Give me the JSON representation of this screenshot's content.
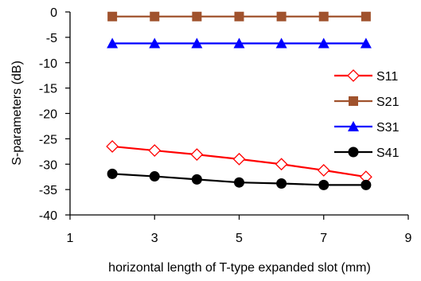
{
  "chart_data": {
    "type": "line",
    "title": "",
    "xlabel": "horizontal length of T-type expanded slot (mm)",
    "ylabel": "S-parameters (dB)",
    "xlim": [
      1,
      9
    ],
    "ylim": [
      -40,
      0
    ],
    "x_ticks": [
      "1",
      "3",
      "5",
      "7",
      "9"
    ],
    "y_ticks": [
      "0",
      "-5",
      "-10",
      "-15",
      "-20",
      "-25",
      "-30",
      "-35",
      "-40"
    ],
    "x_tick_values": [
      1,
      3,
      5,
      7,
      9
    ],
    "y_tick_values": [
      0,
      -5,
      -10,
      -15,
      -20,
      -25,
      -30,
      -35,
      -40
    ],
    "grid": false,
    "legend_position": "right",
    "x": [
      2,
      3,
      4,
      5,
      6,
      7,
      8
    ],
    "series": [
      {
        "name": "S11",
        "color": "#ff0000",
        "marker": "diamond-open",
        "values": [
          -26.5,
          -27.3,
          -28.1,
          -29.0,
          -30.0,
          -31.2,
          -32.5
        ]
      },
      {
        "name": "S21",
        "color": "#a0522d",
        "marker": "square",
        "values": [
          -0.9,
          -0.9,
          -0.9,
          -0.9,
          -0.9,
          -0.9,
          -0.9
        ]
      },
      {
        "name": "S31",
        "color": "#0000ff",
        "marker": "triangle",
        "values": [
          -6.2,
          -6.2,
          -6.2,
          -6.2,
          -6.2,
          -6.2,
          -6.2
        ]
      },
      {
        "name": "S41",
        "color": "#000000",
        "marker": "circle",
        "values": [
          -31.9,
          -32.4,
          -33.0,
          -33.6,
          -33.8,
          -34.1,
          -34.1
        ]
      }
    ]
  }
}
